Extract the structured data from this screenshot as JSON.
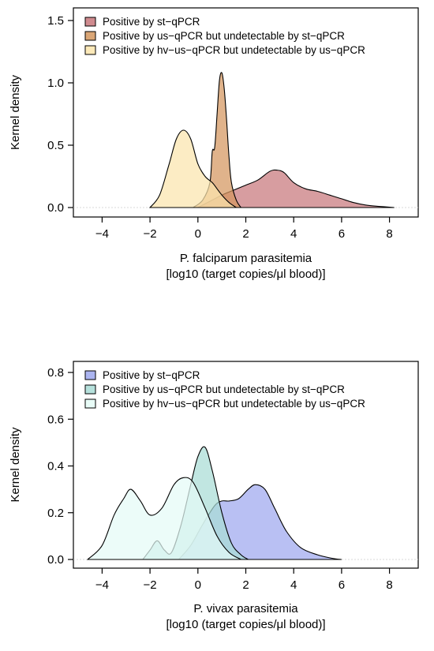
{
  "chart_data": [
    {
      "type": "area",
      "title": "",
      "xlabel": "P. falciparum parasitemia",
      "xlabel2": "[log10 (target copies/μl blood)]",
      "ylabel": "Kernel density",
      "xlim": [
        -5.2,
        9.2
      ],
      "ylim": [
        0,
        1.5
      ],
      "xticks": [
        -4,
        -2,
        0,
        2,
        4,
        6,
        8
      ],
      "yticks": [
        0.0,
        0.5,
        1.0,
        1.5
      ],
      "xtick_labels": [
        "−4",
        "−2",
        "0",
        "2",
        "4",
        "6",
        "8"
      ],
      "ytick_labels": [
        "0.0",
        "0.5",
        "1.0",
        "1.5"
      ],
      "legend_position": "top-left",
      "series": [
        {
          "name": "Positive by st−qPCR",
          "color": "#c8777b",
          "x": [
            0.0,
            0.5,
            1.0,
            1.5,
            2.0,
            2.5,
            3.0,
            3.3,
            3.6,
            4.0,
            4.5,
            5.0,
            5.5,
            6.0,
            6.5,
            7.0,
            7.5,
            8.2
          ],
          "y": [
            0.0,
            0.05,
            0.1,
            0.14,
            0.18,
            0.22,
            0.29,
            0.3,
            0.28,
            0.2,
            0.15,
            0.13,
            0.1,
            0.07,
            0.04,
            0.02,
            0.01,
            0.0
          ]
        },
        {
          "name": "Positive by us−qPCR but undetectable by st−qPCR",
          "color": "#d4965e",
          "x": [
            -0.2,
            0.2,
            0.5,
            0.6,
            0.7,
            0.8,
            0.9,
            1.0,
            1.1,
            1.2,
            1.3,
            1.4,
            1.6,
            1.8
          ],
          "y": [
            0.0,
            0.06,
            0.2,
            0.45,
            0.48,
            0.75,
            1.02,
            1.08,
            0.95,
            0.7,
            0.4,
            0.2,
            0.06,
            0.0
          ]
        },
        {
          "name": "Positive by hv−us−qPCR but undetectable by us−qPCR",
          "color": "#fbe5ad",
          "x": [
            -2.0,
            -1.6,
            -1.2,
            -0.9,
            -0.6,
            -0.3,
            0.0,
            0.3,
            0.6,
            0.8,
            1.0,
            1.3,
            1.6
          ],
          "y": [
            0.0,
            0.1,
            0.35,
            0.55,
            0.62,
            0.55,
            0.35,
            0.25,
            0.2,
            0.15,
            0.1,
            0.04,
            0.0
          ]
        }
      ]
    },
    {
      "type": "area",
      "title": "",
      "xlabel": "P. vivax parasitemia",
      "xlabel2": "[log10 (target copies/μl blood)]",
      "ylabel": "Kernel density",
      "xlim": [
        -5.2,
        9.2
      ],
      "ylim": [
        0,
        0.8
      ],
      "xticks": [
        -4,
        -2,
        0,
        2,
        4,
        6,
        8
      ],
      "yticks": [
        0.0,
        0.2,
        0.4,
        0.6,
        0.8
      ],
      "xtick_labels": [
        "−4",
        "−2",
        "0",
        "2",
        "4",
        "6",
        "8"
      ],
      "ytick_labels": [
        "0.0",
        "0.2",
        "0.4",
        "0.6",
        "0.8"
      ],
      "legend_position": "top-left",
      "series": [
        {
          "name": "Positive by st−qPCR",
          "color": "#9ea8ee",
          "x": [
            -0.8,
            -0.3,
            0.2,
            0.7,
            1.0,
            1.3,
            1.7,
            2.1,
            2.4,
            2.8,
            3.2,
            3.7,
            4.3,
            5.0,
            5.6,
            6.0
          ],
          "y": [
            0.0,
            0.06,
            0.15,
            0.23,
            0.25,
            0.25,
            0.26,
            0.3,
            0.32,
            0.3,
            0.22,
            0.12,
            0.05,
            0.02,
            0.005,
            0.0
          ]
        },
        {
          "name": "Positive by us−qPCR but undetectable by st−qPCR",
          "color": "#a9dcd6",
          "x": [
            -2.3,
            -2.0,
            -1.7,
            -1.4,
            -1.1,
            -0.7,
            -0.3,
            0.0,
            0.3,
            0.6,
            1.0,
            1.4,
            1.8,
            2.1
          ],
          "y": [
            0.0,
            0.04,
            0.08,
            0.04,
            0.03,
            0.15,
            0.32,
            0.44,
            0.48,
            0.38,
            0.2,
            0.07,
            0.02,
            0.0
          ]
        },
        {
          "name": "Positive by hv−us−qPCR but undetectable by us−qPCR",
          "color": "#e4fbf6",
          "x": [
            -4.6,
            -4.0,
            -3.5,
            -3.1,
            -2.8,
            -2.4,
            -2.0,
            -1.5,
            -1.0,
            -0.6,
            -0.2,
            0.3,
            0.8,
            1.3,
            1.8
          ],
          "y": [
            0.0,
            0.06,
            0.19,
            0.26,
            0.3,
            0.25,
            0.19,
            0.22,
            0.32,
            0.35,
            0.33,
            0.22,
            0.1,
            0.03,
            0.0
          ]
        }
      ]
    }
  ]
}
